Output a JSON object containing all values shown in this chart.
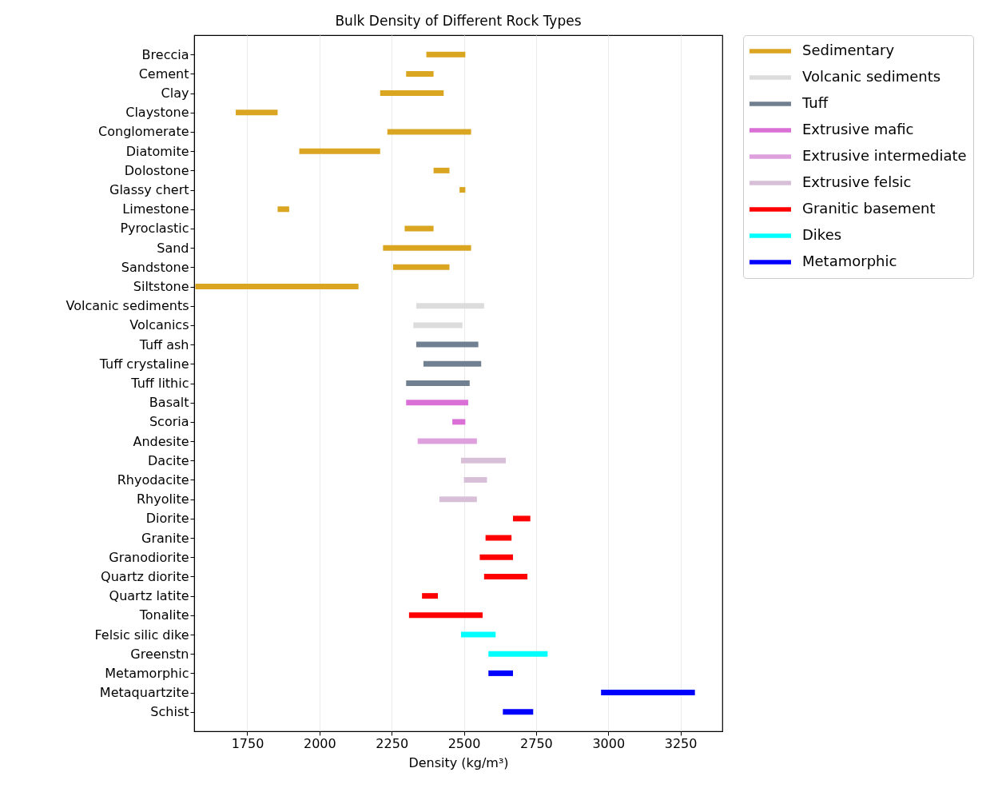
{
  "chart_data": {
    "type": "bar",
    "orientation": "horizontal",
    "title": "Bulk Density of Different Rock Types",
    "xlabel": "Density (kg/m³)",
    "categories": [
      "Breccia",
      "Cement",
      "Clay",
      "Claystone",
      "Conglomerate",
      "Diatomite",
      "Dolostone",
      "Glassy chert",
      "Limestone",
      "Pyroclastic",
      "Sand",
      "Sandstone",
      "Siltstone",
      "Volcanic sediments",
      "Volcanics",
      "Tuff ash",
      "Tuff crystaline",
      "Tuff lithic",
      "Basalt",
      "Scoria",
      "Andesite",
      "Dacite",
      "Rhyodacite",
      "Rhyolite",
      "Diorite",
      "Granite",
      "Granodiorite",
      "Quartz diorite",
      "Quartz latite",
      "Tonalite",
      "Felsic silic dike",
      "Greenstn",
      "Metamorphic",
      "Metaquartzite",
      "Schist"
    ],
    "series": [
      {
        "name": "Sedimentary",
        "color": "#daa520",
        "base": [
          2370,
          2300,
          2210,
          1710,
          2235,
          1930,
          2395,
          2485,
          1855,
          2295,
          2220,
          2255,
          1570,
          null,
          null,
          null,
          null,
          null,
          null,
          null,
          null,
          null,
          null,
          null,
          null,
          null,
          null,
          null,
          null,
          null,
          null,
          null,
          null,
          null,
          null
        ],
        "values": [
          135,
          95,
          220,
          145,
          290,
          280,
          55,
          20,
          40,
          100,
          305,
          195,
          565,
          null,
          null,
          null,
          null,
          null,
          null,
          null,
          null,
          null,
          null,
          null,
          null,
          null,
          null,
          null,
          null,
          null,
          null,
          null,
          null,
          null,
          null
        ]
      },
      {
        "name": "Volcanic sediments",
        "color": "#dcdcdc",
        "base": [
          null,
          null,
          null,
          null,
          null,
          null,
          null,
          null,
          null,
          null,
          null,
          null,
          null,
          2335,
          2325,
          null,
          null,
          null,
          null,
          null,
          null,
          null,
          null,
          null,
          null,
          null,
          null,
          null,
          null,
          null,
          null,
          null,
          null,
          null,
          null
        ],
        "values": [
          null,
          null,
          null,
          null,
          null,
          null,
          null,
          null,
          null,
          null,
          null,
          null,
          null,
          235,
          170,
          null,
          null,
          null,
          null,
          null,
          null,
          null,
          null,
          null,
          null,
          null,
          null,
          null,
          null,
          null,
          null,
          null,
          null,
          null,
          null
        ]
      },
      {
        "name": "Tuff",
        "color": "#708090",
        "base": [
          null,
          null,
          null,
          null,
          null,
          null,
          null,
          null,
          null,
          null,
          null,
          null,
          null,
          null,
          null,
          2335,
          2360,
          2300,
          null,
          null,
          null,
          null,
          null,
          null,
          null,
          null,
          null,
          null,
          null,
          null,
          null,
          null,
          null,
          null,
          null
        ],
        "values": [
          null,
          null,
          null,
          null,
          null,
          null,
          null,
          null,
          null,
          null,
          null,
          null,
          null,
          null,
          null,
          215,
          200,
          220,
          null,
          null,
          null,
          null,
          null,
          null,
          null,
          null,
          null,
          null,
          null,
          null,
          null,
          null,
          null,
          null,
          null
        ]
      },
      {
        "name": "Extrusive mafic",
        "color": "#da70d6",
        "base": [
          null,
          null,
          null,
          null,
          null,
          null,
          null,
          null,
          null,
          null,
          null,
          null,
          null,
          null,
          null,
          null,
          null,
          null,
          2300,
          2460,
          null,
          null,
          null,
          null,
          null,
          null,
          null,
          null,
          null,
          null,
          null,
          null,
          null,
          null,
          null
        ],
        "values": [
          null,
          null,
          null,
          null,
          null,
          null,
          null,
          null,
          null,
          null,
          null,
          null,
          null,
          null,
          null,
          null,
          null,
          null,
          215,
          45,
          null,
          null,
          null,
          null,
          null,
          null,
          null,
          null,
          null,
          null,
          null,
          null,
          null,
          null,
          null
        ]
      },
      {
        "name": "Extrusive intermediate",
        "color": "#dda0dd",
        "base": [
          null,
          null,
          null,
          null,
          null,
          null,
          null,
          null,
          null,
          null,
          null,
          null,
          null,
          null,
          null,
          null,
          null,
          null,
          null,
          null,
          2340,
          null,
          null,
          null,
          null,
          null,
          null,
          null,
          null,
          null,
          null,
          null,
          null,
          null,
          null
        ],
        "values": [
          null,
          null,
          null,
          null,
          null,
          null,
          null,
          null,
          null,
          null,
          null,
          null,
          null,
          null,
          null,
          null,
          null,
          null,
          null,
          null,
          205,
          null,
          null,
          null,
          null,
          null,
          null,
          null,
          null,
          null,
          null,
          null,
          null,
          null,
          null
        ]
      },
      {
        "name": "Extrusive felsic",
        "color": "#d8bfd8",
        "base": [
          null,
          null,
          null,
          null,
          null,
          null,
          null,
          null,
          null,
          null,
          null,
          null,
          null,
          null,
          null,
          null,
          null,
          null,
          null,
          null,
          null,
          2490,
          2500,
          2415,
          null,
          null,
          null,
          null,
          null,
          null,
          null,
          null,
          null,
          null,
          null
        ],
        "values": [
          null,
          null,
          null,
          null,
          null,
          null,
          null,
          null,
          null,
          null,
          null,
          null,
          null,
          null,
          null,
          null,
          null,
          null,
          null,
          null,
          null,
          155,
          80,
          130,
          null,
          null,
          null,
          null,
          null,
          null,
          null,
          null,
          null,
          null,
          null
        ]
      },
      {
        "name": "Granitic basement",
        "color": "#ff0000",
        "base": [
          null,
          null,
          null,
          null,
          null,
          null,
          null,
          null,
          null,
          null,
          null,
          null,
          null,
          null,
          null,
          null,
          null,
          null,
          null,
          null,
          null,
          null,
          null,
          null,
          2670,
          2575,
          2555,
          2570,
          2355,
          2310,
          null,
          null,
          null,
          null,
          null
        ],
        "values": [
          null,
          null,
          null,
          null,
          null,
          null,
          null,
          null,
          null,
          null,
          null,
          null,
          null,
          null,
          null,
          null,
          null,
          null,
          null,
          null,
          null,
          null,
          null,
          null,
          60,
          90,
          115,
          150,
          55,
          255,
          null,
          null,
          null,
          null,
          null
        ]
      },
      {
        "name": "Dikes",
        "color": "#00ffff",
        "base": [
          null,
          null,
          null,
          null,
          null,
          null,
          null,
          null,
          null,
          null,
          null,
          null,
          null,
          null,
          null,
          null,
          null,
          null,
          null,
          null,
          null,
          null,
          null,
          null,
          null,
          null,
          null,
          null,
          null,
          null,
          2490,
          2585,
          null,
          null,
          null
        ],
        "values": [
          null,
          null,
          null,
          null,
          null,
          null,
          null,
          null,
          null,
          null,
          null,
          null,
          null,
          null,
          null,
          null,
          null,
          null,
          null,
          null,
          null,
          null,
          null,
          null,
          null,
          null,
          null,
          null,
          null,
          null,
          120,
          205,
          null,
          null,
          null
        ]
      },
      {
        "name": "Metamorphic",
        "color": "#0000ff",
        "base": [
          null,
          null,
          null,
          null,
          null,
          null,
          null,
          null,
          null,
          null,
          null,
          null,
          null,
          null,
          null,
          null,
          null,
          null,
          null,
          null,
          null,
          null,
          null,
          null,
          null,
          null,
          null,
          null,
          null,
          null,
          null,
          null,
          2585,
          2975,
          2635
        ],
        "values": [
          null,
          null,
          null,
          null,
          null,
          null,
          null,
          null,
          null,
          null,
          null,
          null,
          null,
          null,
          null,
          null,
          null,
          null,
          null,
          null,
          null,
          null,
          null,
          null,
          null,
          null,
          null,
          null,
          null,
          null,
          null,
          null,
          85,
          325,
          105
        ]
      }
    ],
    "xlim": [
      1566,
      3395
    ],
    "xticks": [
      1750,
      2000,
      2250,
      2500,
      2750,
      3000,
      3250
    ],
    "grid": "x",
    "legend": "top right"
  }
}
